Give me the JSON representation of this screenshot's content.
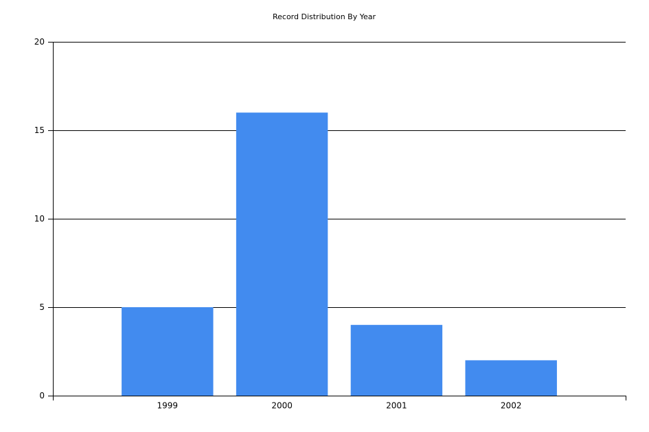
{
  "chart_data": {
    "type": "bar",
    "title": "Record Distribution By Year",
    "categories": [
      "1999",
      "2000",
      "2001",
      "2002"
    ],
    "values": [
      5,
      16,
      4,
      2
    ],
    "color": "#428bef",
    "ylim": [
      0,
      20
    ],
    "yticks": [
      0,
      5,
      10,
      15,
      20
    ],
    "grid": true
  }
}
